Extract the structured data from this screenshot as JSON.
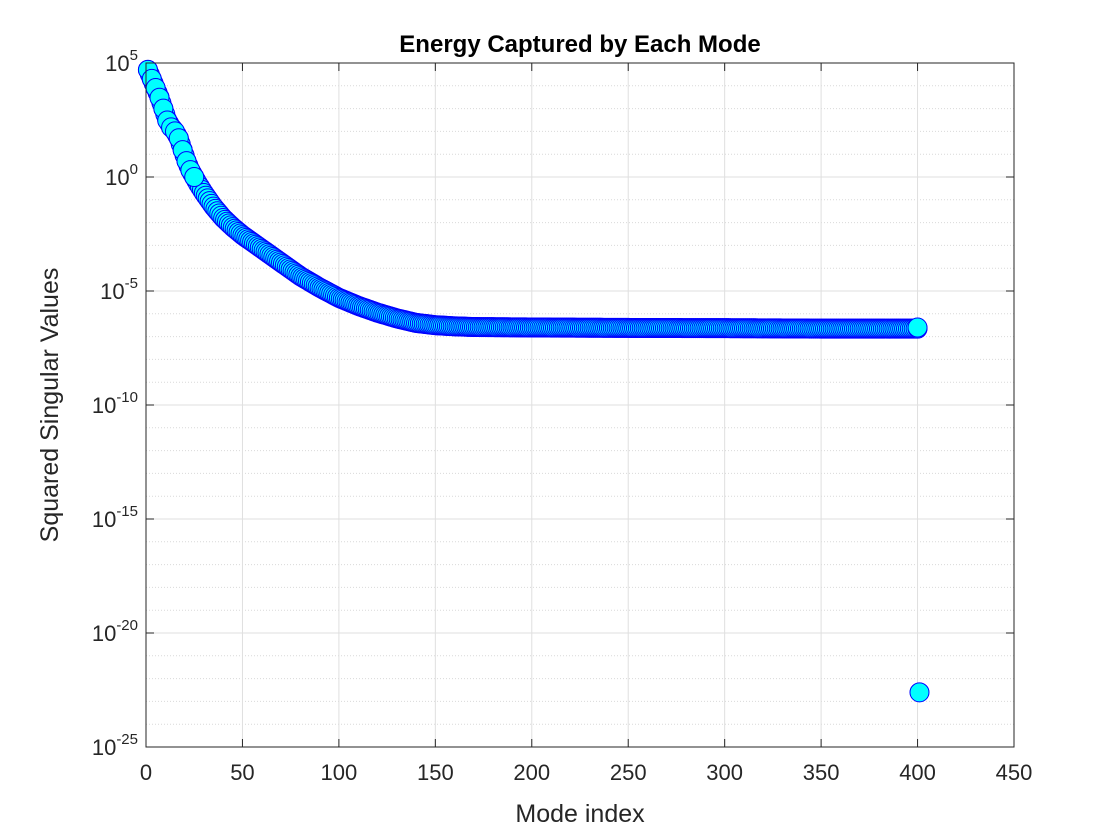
{
  "chart_data": {
    "type": "scatter",
    "title": "Energy Captured by Each Mode",
    "xlabel": "Mode index",
    "ylabel": "Squared Singular Values",
    "xlim": [
      0,
      450
    ],
    "ylim_log10": [
      -25,
      5
    ],
    "yscale": "log",
    "grid": true,
    "minor_grid": true,
    "x_ticks": [
      0,
      50,
      100,
      150,
      200,
      250,
      300,
      350,
      400,
      450
    ],
    "y_ticks": [
      {
        "base": "10",
        "exp": "5"
      },
      {
        "base": "10",
        "exp": "0"
      },
      {
        "base": "10",
        "exp": "-5"
      },
      {
        "base": "10",
        "exp": "-10"
      },
      {
        "base": "10",
        "exp": "-15"
      },
      {
        "base": "10",
        "exp": "-20"
      },
      {
        "base": "10",
        "exp": "-25"
      }
    ],
    "marker": {
      "face_color": "#00ffff",
      "edge_color": "#0000ff"
    },
    "curve_log10": {
      "x": [
        1,
        3,
        5,
        7,
        9,
        11,
        13,
        15,
        17,
        19,
        21,
        23,
        25,
        27,
        30,
        35,
        40,
        45,
        50,
        55,
        60,
        65,
        70,
        80,
        90,
        100,
        110,
        120,
        130,
        140,
        150,
        160,
        170,
        200,
        250,
        300,
        350,
        400
      ],
      "log10_y": [
        4.7,
        4.3,
        3.9,
        3.5,
        3.0,
        2.5,
        2.2,
        2.0,
        1.7,
        1.2,
        0.7,
        0.3,
        0.0,
        -0.3,
        -0.7,
        -1.3,
        -1.8,
        -2.2,
        -2.55,
        -2.85,
        -3.15,
        -3.45,
        -3.75,
        -4.35,
        -4.85,
        -5.3,
        -5.65,
        -5.95,
        -6.2,
        -6.4,
        -6.5,
        -6.55,
        -6.58,
        -6.6,
        -6.62,
        -6.63,
        -6.65,
        -6.65
      ]
    },
    "highlighted_points": [
      {
        "x": 1,
        "y": 50000
      },
      {
        "x": 3,
        "y": 20000
      },
      {
        "x": 5,
        "y": 8000
      },
      {
        "x": 7,
        "y": 3000
      },
      {
        "x": 9,
        "y": 1000
      },
      {
        "x": 11,
        "y": 300
      },
      {
        "x": 13,
        "y": 150
      },
      {
        "x": 15,
        "y": 100
      },
      {
        "x": 17,
        "y": 50
      },
      {
        "x": 19,
        "y": 15
      },
      {
        "x": 21,
        "y": 5
      },
      {
        "x": 23,
        "y": 2
      },
      {
        "x": 25,
        "y": 1
      },
      {
        "x": 400,
        "y": 2.5e-07
      },
      {
        "x": 401,
        "y": 2.5e-23
      }
    ],
    "n_points": 401
  }
}
